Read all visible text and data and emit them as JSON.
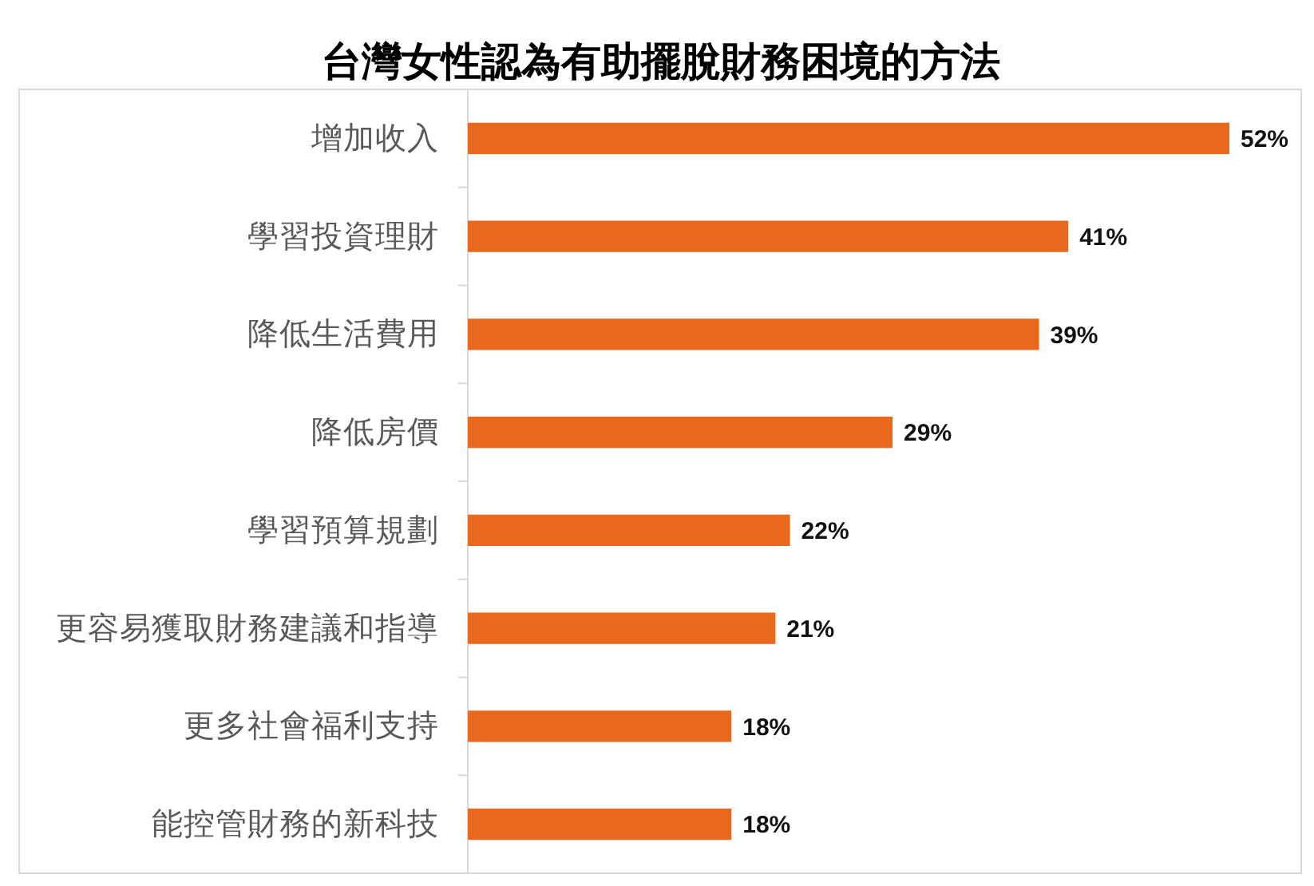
{
  "chart_data": {
    "type": "bar",
    "orientation": "horizontal",
    "title": "台灣女性認為有助擺脫財務困境的方法",
    "categories": [
      "增加收入",
      "學習投資理財",
      "降低生活費用",
      "降低房價",
      "學習預算規劃",
      "更容易獲取財務建議和指導",
      "更多社會福利支持",
      "能控管財務的新科技"
    ],
    "values": [
      52,
      41,
      39,
      29,
      22,
      21,
      18,
      18
    ],
    "value_labels": [
      "52%",
      "41%",
      "39%",
      "29%",
      "22%",
      "21%",
      "18%",
      "18%"
    ],
    "color": "#e8691e"
  }
}
